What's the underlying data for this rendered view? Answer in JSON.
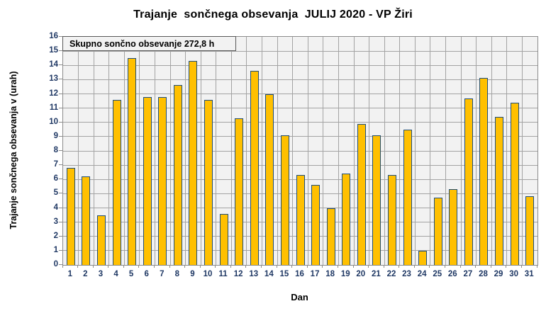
{
  "title": "Trajanje  sončnega obsevanja  JULIJ 2020 - VP Žiri",
  "annotation": {
    "label": "Skupno sončno obsevanje 272,8 h"
  },
  "axes": {
    "x_title": "Dan",
    "y_title": "Trajanje sončnega obsevanja v (urah)"
  },
  "colors": {
    "bar_fill": "#FFC000",
    "bar_border": "#1F4E79",
    "plot_background": "#f2f2f2",
    "gridline": "#a3a3a3",
    "tick_label": "#1f3864",
    "title": "#000000"
  },
  "chart_data": {
    "type": "bar",
    "title": "Trajanje sončnega obsevanja JULIJ 2020 - VP Žiri",
    "xlabel": "Dan",
    "ylabel": "Trajanje sončnega obsevanja v (urah)",
    "categories": [
      1,
      2,
      3,
      4,
      5,
      6,
      7,
      8,
      9,
      10,
      11,
      12,
      13,
      14,
      15,
      16,
      17,
      18,
      19,
      20,
      21,
      22,
      23,
      24,
      25,
      26,
      27,
      28,
      29,
      30,
      31
    ],
    "values": [
      6.8,
      6.2,
      3.5,
      11.6,
      14.5,
      11.8,
      11.8,
      12.6,
      14.3,
      11.6,
      3.6,
      10.3,
      13.6,
      12.0,
      9.1,
      6.3,
      5.6,
      4.0,
      6.4,
      9.9,
      9.1,
      6.3,
      9.5,
      1.0,
      4.7,
      5.3,
      11.7,
      13.1,
      10.4,
      11.4,
      4.8
    ],
    "total_label": "Skupno sončno obsevanje 272,8 h",
    "total_hours": 272.8,
    "ylim": [
      0,
      16
    ],
    "ytick_step": 1,
    "grid": "horizontal and vertical category boundaries",
    "legend_position": "none",
    "plot_area_background": "#f2f2f2"
  }
}
